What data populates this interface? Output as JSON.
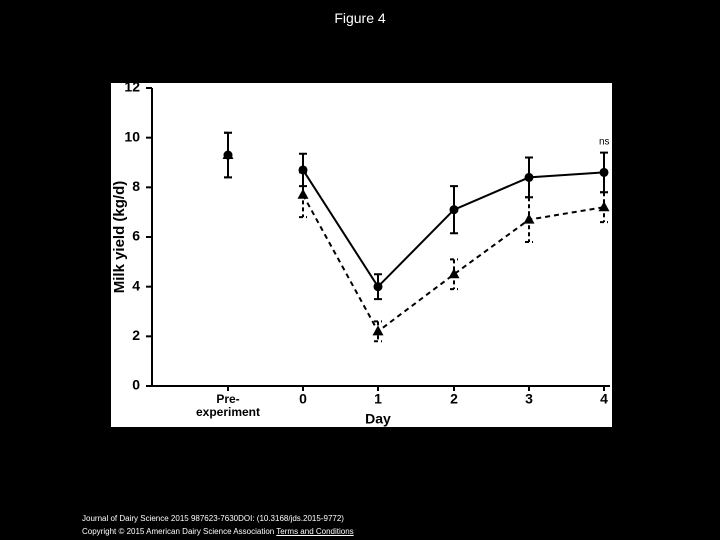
{
  "slide_title": "Figure 4",
  "chart_data": {
    "type": "line",
    "ylabel": "Milk yield (kg/d)",
    "xlabel": "Day",
    "categories": [
      "Pre-\nexperiment",
      "0",
      "1",
      "2",
      "3",
      "4"
    ],
    "series": [
      {
        "marker": "circle",
        "color": "#000000",
        "dashed": false,
        "values": [
          9.3,
          8.7,
          4.0,
          7.1,
          8.4,
          8.6
        ],
        "errors": [
          0.9,
          0.65,
          0.5,
          0.95,
          0.8,
          0.8
        ]
      },
      {
        "marker": "triangle",
        "color": "#000000",
        "dashed": true,
        "values": [
          9.3,
          7.7,
          2.2,
          4.5,
          6.7,
          7.2
        ],
        "errors": [
          0.9,
          0.9,
          0.4,
          0.6,
          0.9,
          0.6
        ]
      }
    ],
    "ylim": [
      0,
      12
    ],
    "yticks": [
      0,
      2,
      4,
      6,
      8,
      10,
      12
    ],
    "annotation": "ns"
  },
  "footer": {
    "citation": "Journal of Dairy Science 2015 987623-7630DOI: (10.3168/jds.2015-9772)",
    "copyright": "Copyright © 2015 American Dairy Science Association",
    "link": "Terms and Conditions"
  }
}
